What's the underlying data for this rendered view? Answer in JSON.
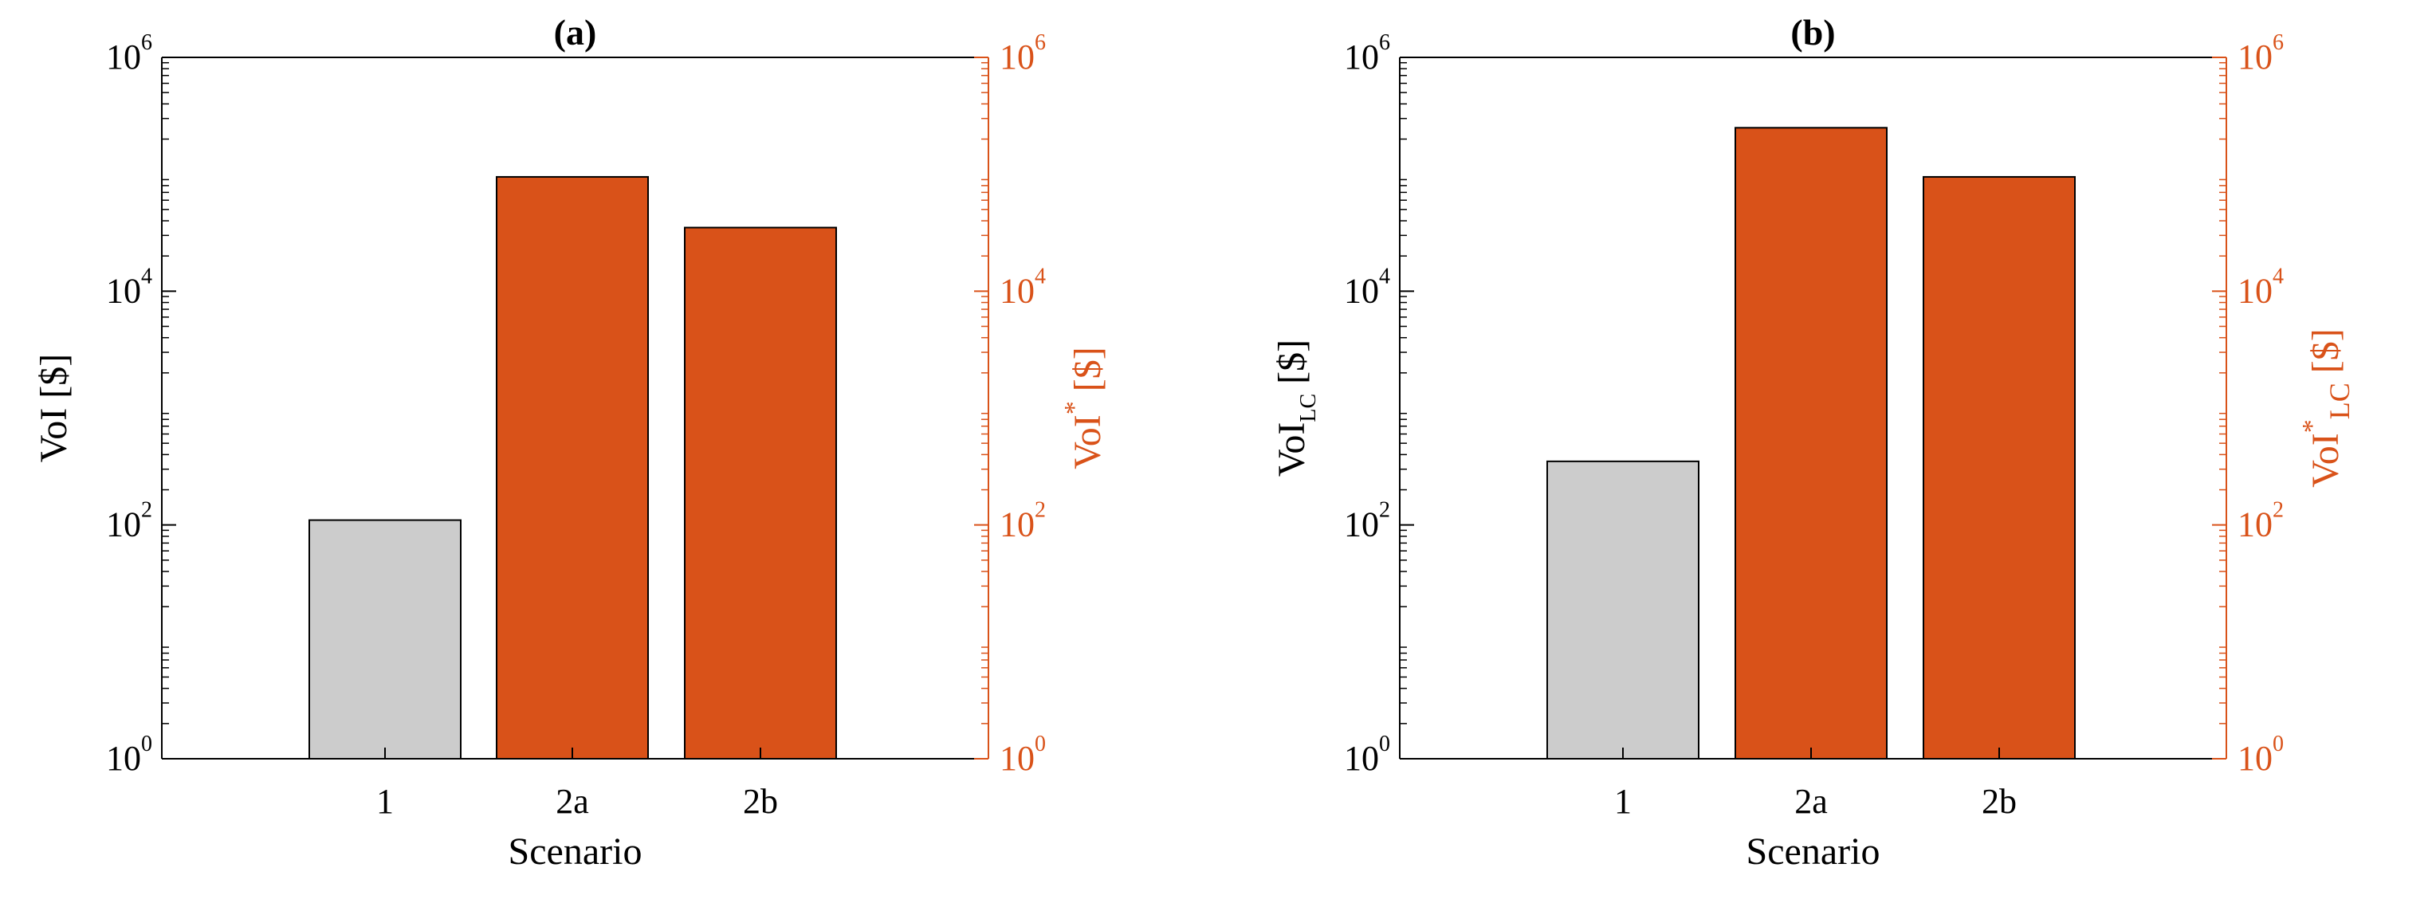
{
  "colors": {
    "baseline": "#cccccc",
    "highlight": "#d95219",
    "axis": "#000000",
    "right_axis": "#d95219"
  },
  "chart_data": [
    {
      "type": "bar",
      "title": "(a)",
      "categories": [
        "1",
        "2a",
        "2b"
      ],
      "values": [
        110,
        95000,
        35000
      ],
      "bar_colors": [
        "#cccccc",
        "#d95219",
        "#d95219"
      ],
      "xlabel": "Scenario",
      "ylabel": {
        "base": "VoI",
        "sub": "",
        "unit": " [$]"
      },
      "ylabel_right": {
        "base": "VoI",
        "sup": "*",
        "sub": "",
        "unit": " [$]"
      },
      "yscale": "log",
      "ylim": [
        1,
        1000000
      ],
      "yticks": [
        {
          "base": "10",
          "exp": "0"
        },
        {
          "base": "10",
          "exp": "2"
        },
        {
          "base": "10",
          "exp": "4"
        },
        {
          "base": "10",
          "exp": "6"
        }
      ],
      "grid": false,
      "legend": "none"
    },
    {
      "type": "bar",
      "title": "(b)",
      "categories": [
        "1",
        "2a",
        "2b"
      ],
      "values": [
        350,
        250000,
        95000
      ],
      "bar_colors": [
        "#cccccc",
        "#d95219",
        "#d95219"
      ],
      "xlabel": "Scenario",
      "ylabel": {
        "base": "VoI",
        "sub": "LC",
        "unit": " [$]"
      },
      "ylabel_right": {
        "base": "VoI",
        "sup": "*",
        "sub": "LC",
        "unit": " [$]"
      },
      "yscale": "log",
      "ylim": [
        1,
        1000000
      ],
      "yticks": [
        {
          "base": "10",
          "exp": "0"
        },
        {
          "base": "10",
          "exp": "2"
        },
        {
          "base": "10",
          "exp": "4"
        },
        {
          "base": "10",
          "exp": "6"
        }
      ],
      "grid": false,
      "legend": "none"
    }
  ]
}
